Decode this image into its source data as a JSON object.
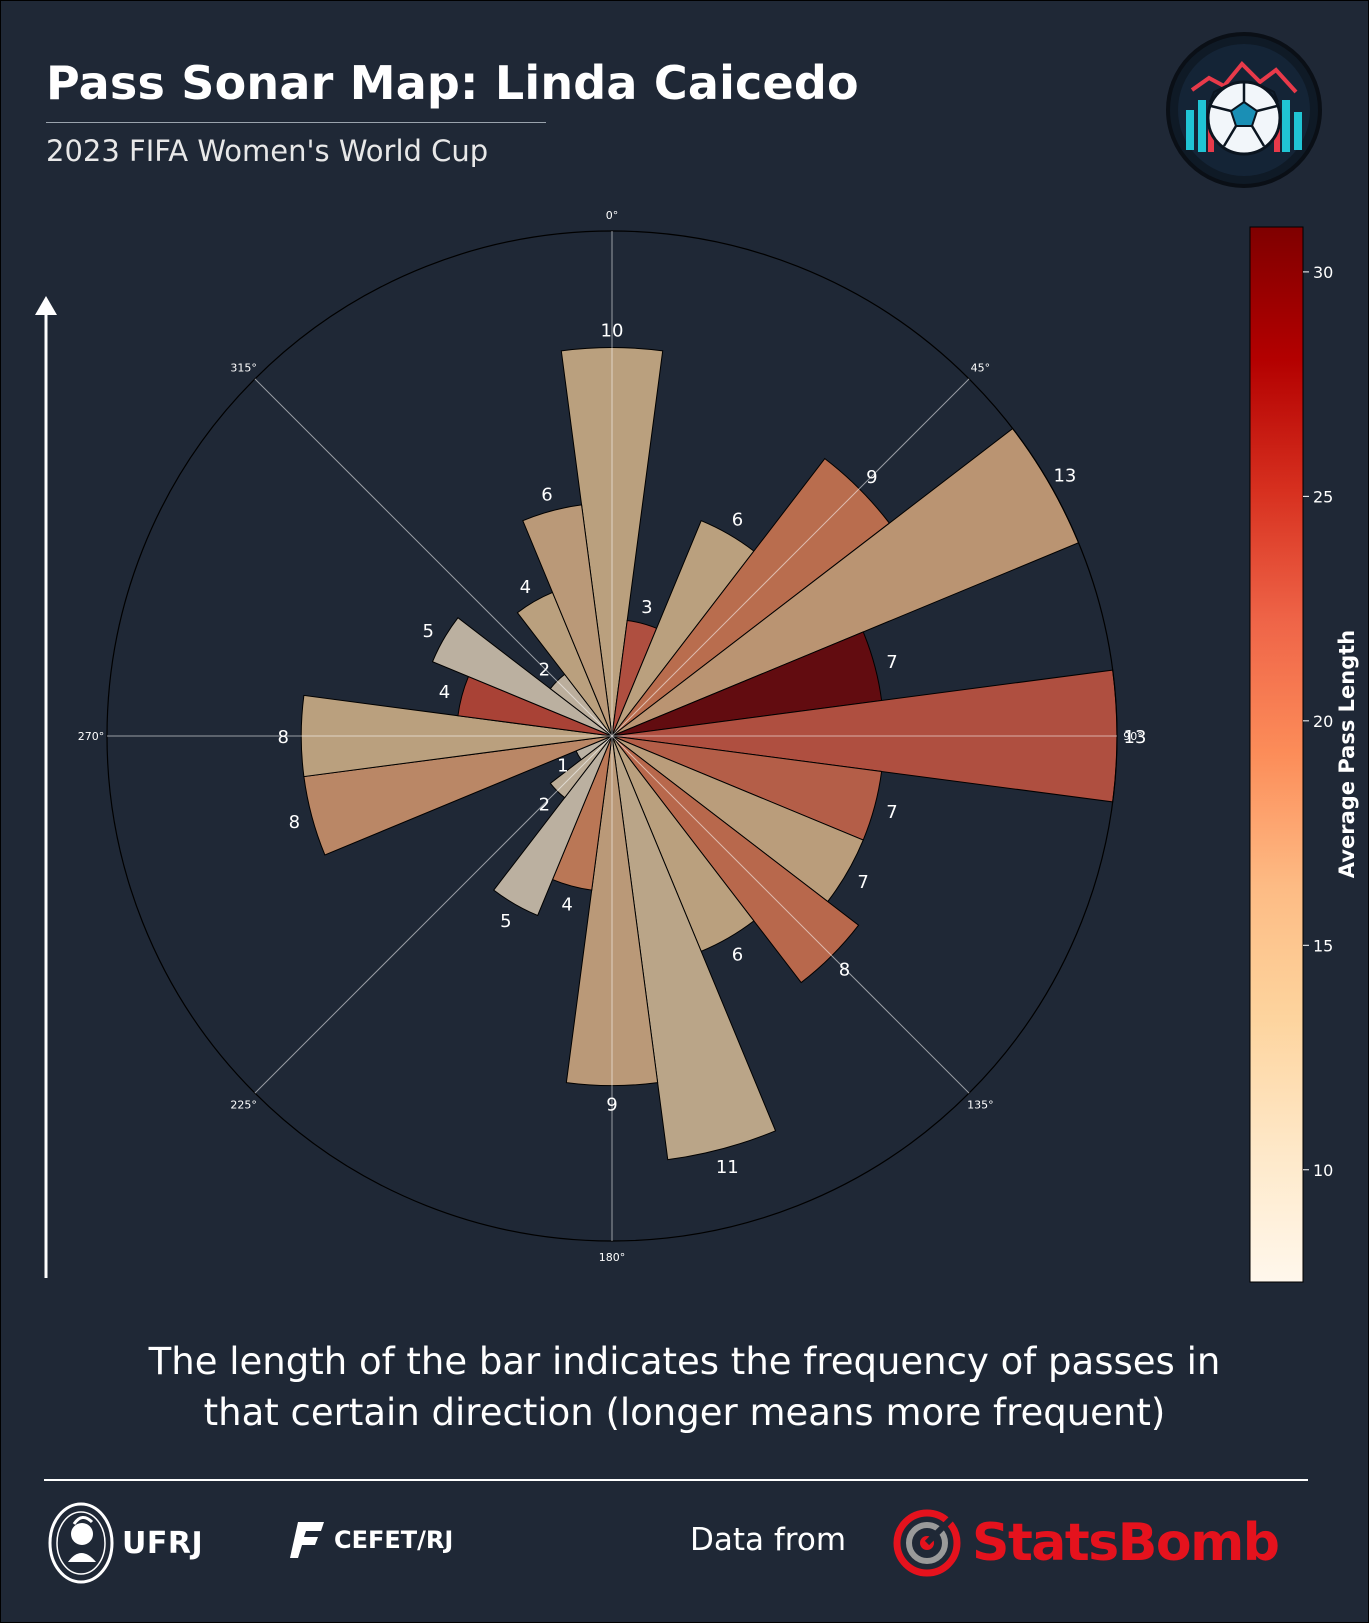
{
  "header": {
    "title": "Pass Sonar Map: Linda Caicedo",
    "subtitle": "2023 FIFA Women's World Cup"
  },
  "caption": {
    "line1": "The length of the bar indicates the frequency of passes in",
    "line2": "that certain direction (longer means more frequent)"
  },
  "footer": {
    "ufrj": "UFRJ",
    "cefet": "CEFET/RJ",
    "data_from": "Data from",
    "statsbomb": "StatsBomb"
  },
  "colors": {
    "background": "#1f2836",
    "accent_red": "#e5121d"
  },
  "icons": [
    "football-logo-icon",
    "direction-arrow-icon",
    "ufrj-seal-icon",
    "cefet-logo-icon",
    "statsbomb-target-icon"
  ],
  "chart_data": {
    "type": "polar-bar",
    "angle_ticks": [
      "0°",
      "45°",
      "90°",
      "135°",
      "180°",
      "225°",
      "270°",
      "315°"
    ],
    "r_max": 13,
    "bins": 24,
    "bin_width_deg": 15,
    "directions_deg": [
      0,
      15,
      30,
      45,
      60,
      75,
      90,
      105,
      120,
      135,
      150,
      165,
      180,
      195,
      210,
      225,
      240,
      255,
      270,
      285,
      300,
      315,
      330,
      345
    ],
    "counts": [
      10,
      3,
      6,
      9,
      13,
      7,
      13,
      7,
      7,
      8,
      6,
      11,
      9,
      4,
      5,
      2,
      1,
      8,
      8,
      4,
      5,
      2,
      4,
      6
    ],
    "avg_pass_length": [
      13.5,
      22.5,
      13.5,
      19.5,
      15.5,
      31.5,
      22.5,
      21.0,
      14.0,
      20.0,
      13.5,
      12.5,
      14.5,
      18.5,
      10.0,
      11.0,
      9.5,
      17.0,
      13.5,
      23.5,
      10.0,
      10.5,
      13.5,
      14.5
    ],
    "colorbar": {
      "label": "Average Pass Length",
      "min": 7.5,
      "max": 31,
      "ticks": [
        10,
        15,
        20,
        25,
        30
      ],
      "colormap": "OrRd"
    }
  }
}
